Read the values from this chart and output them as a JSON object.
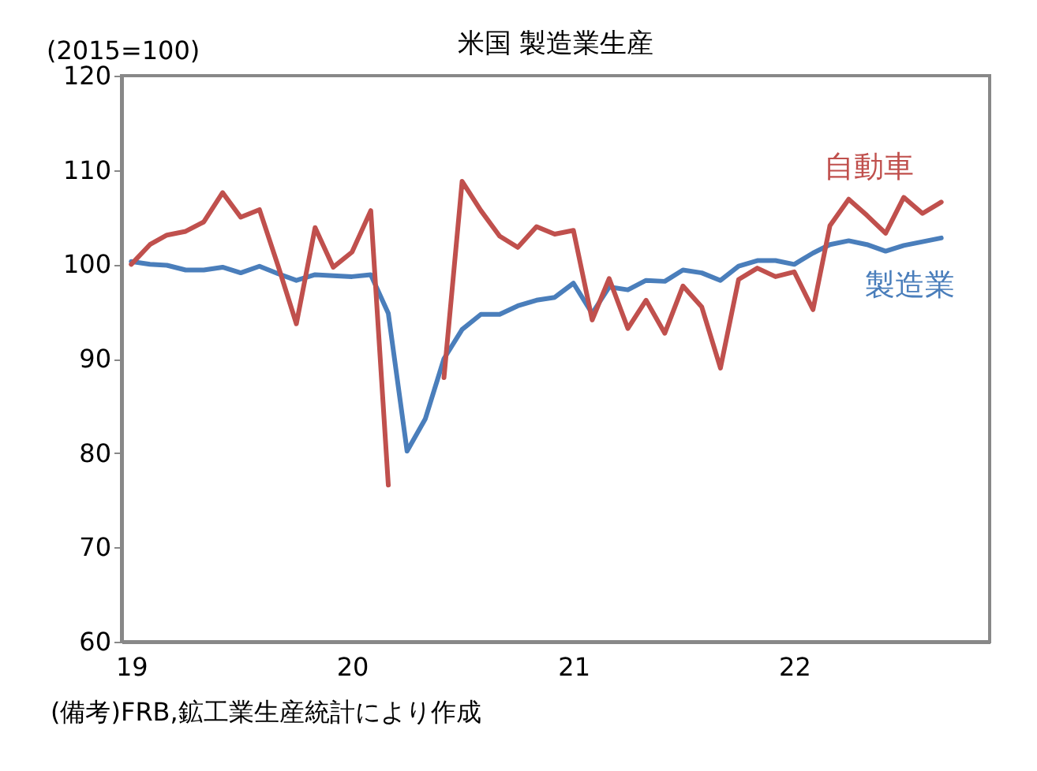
{
  "chart_data": {
    "type": "line",
    "title": "米国 製造業生産",
    "ylabel": "(2015=100)",
    "annotations": [
      "(備考)FRB,鉱工業生産統計により作成"
    ],
    "x": [
      "2019-01",
      "2019-02",
      "2019-03",
      "2019-04",
      "2019-05",
      "2019-06",
      "2019-07",
      "2019-08",
      "2019-09",
      "2019-10",
      "2019-11",
      "2019-12",
      "2020-01",
      "2020-02",
      "2020-03",
      "2020-04",
      "2020-05",
      "2020-06",
      "2020-07",
      "2020-08",
      "2020-09",
      "2020-10",
      "2020-11",
      "2020-12",
      "2021-01",
      "2021-02",
      "2021-03",
      "2021-04",
      "2021-05",
      "2021-06",
      "2021-07",
      "2021-08",
      "2021-09",
      "2021-10",
      "2021-11",
      "2021-12",
      "2022-01",
      "2022-02",
      "2022-03",
      "2022-04",
      "2022-05",
      "2022-06",
      "2022-07",
      "2022-08",
      "2022-09"
    ],
    "series": [
      {
        "name": "製造業",
        "color": "#4a7ebb",
        "values": [
          100.3,
          100.0,
          99.9,
          99.4,
          99.4,
          99.7,
          99.1,
          99.8,
          99.0,
          98.3,
          98.9,
          98.8,
          98.7,
          98.9,
          94.8,
          80.2,
          83.6,
          90.0,
          93.1,
          94.7,
          94.7,
          95.6,
          96.2,
          96.5,
          98.0,
          94.8,
          97.6,
          97.3,
          98.3,
          98.2,
          99.4,
          99.1,
          98.3,
          99.8,
          100.4,
          100.4,
          100.0,
          101.2,
          102.1,
          102.5,
          102.1,
          101.4,
          102.0,
          102.4,
          102.8
        ]
      },
      {
        "name": "自動車",
        "color": "#c0504d",
        "values": [
          100.0,
          102.1,
          103.1,
          103.5,
          104.5,
          107.6,
          105.0,
          105.8,
          99.8,
          93.7,
          103.9,
          99.7,
          101.3,
          105.7,
          76.6,
          null,
          null,
          88.0,
          108.8,
          105.7,
          103.0,
          101.8,
          104.0,
          103.2,
          103.6,
          94.1,
          98.5,
          93.2,
          96.2,
          92.7,
          97.7,
          95.5,
          89.0,
          98.4,
          99.6,
          98.7,
          99.2,
          95.2,
          104.1,
          106.9,
          105.2,
          103.3,
          107.1,
          105.4,
          106.6
        ]
      }
    ],
    "xlim": [
      "2018-12-16",
      "2022-11-20"
    ],
    "xticks": [
      {
        "value": "2019-01",
        "label": "19"
      },
      {
        "value": "2020-01",
        "label": "20"
      },
      {
        "value": "2021-01",
        "label": "21"
      },
      {
        "value": "2022-01",
        "label": "22"
      }
    ],
    "ylim": [
      60,
      120
    ],
    "yticks": [
      60,
      70,
      80,
      90,
      100,
      110,
      120
    ],
    "legend": false,
    "grid": false,
    "line_style": "solid",
    "marker": "none"
  }
}
